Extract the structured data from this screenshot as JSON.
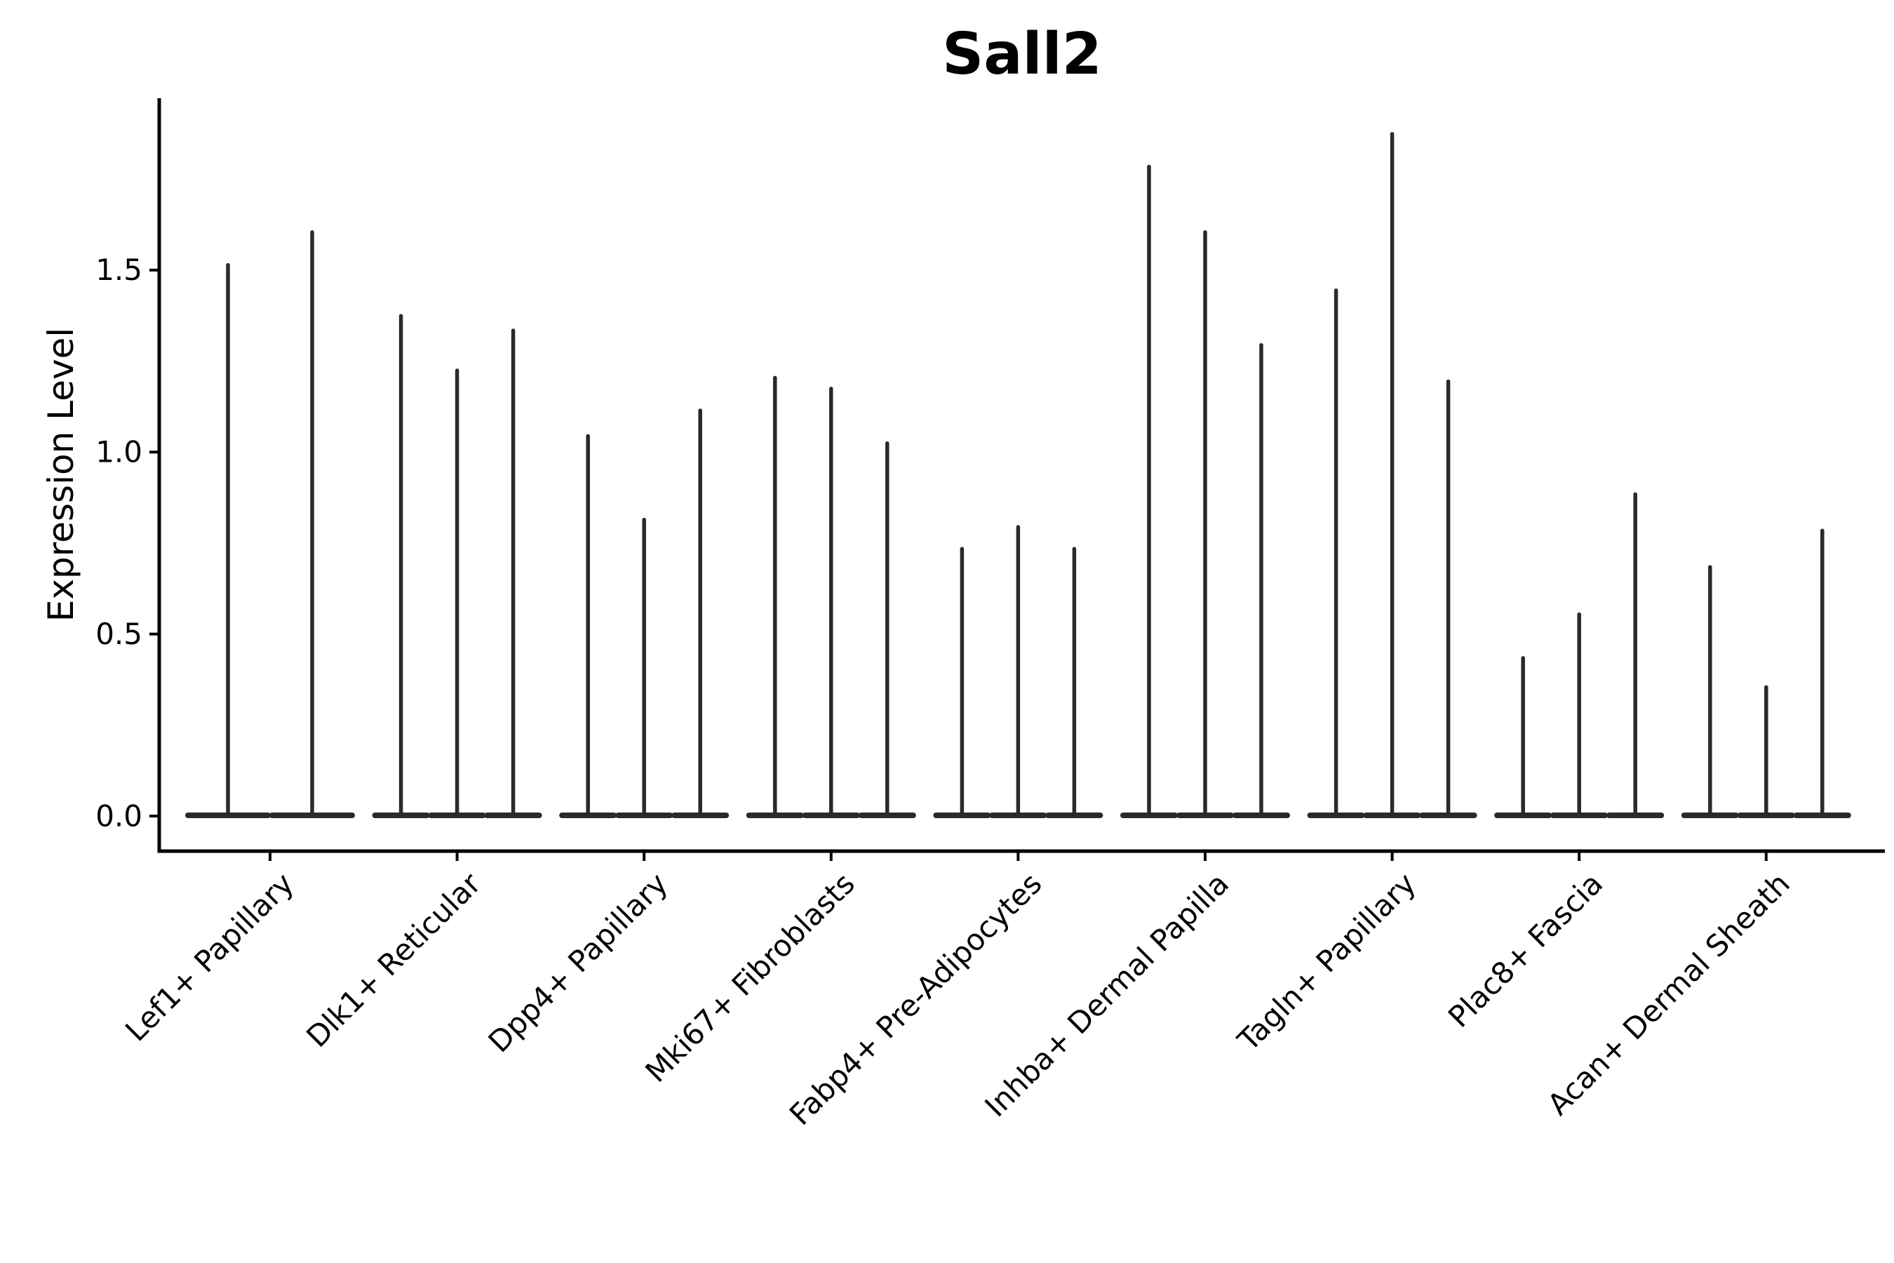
{
  "figure": {
    "title": "Sall2",
    "ylabel": "Expression Level",
    "background_color": "#ffffff",
    "axis_color": "#000000",
    "text_color": "#000000",
    "violin_color": "#2a2a2a"
  },
  "chart_data": {
    "type": "violin",
    "title": "Sall2",
    "xlabel": "",
    "ylabel": "Expression Level",
    "ylim": [
      -0.1,
      1.97
    ],
    "yticks": [
      0.0,
      0.5,
      1.0,
      1.5
    ],
    "ytick_labels": [
      "0.0",
      "0.5",
      "1.0",
      "1.5"
    ],
    "grid": false,
    "legend_position": "none",
    "x_tick_rotation": 45,
    "categories": [
      "Lef1+ Papillary",
      "Dlk1+ Reticular",
      "Dpp4+ Papillary",
      "Mki67+ Fibroblasts",
      "Fabp4+ Pre-Adipocytes",
      "Inhba+ Dermal Papilla",
      "Tagln+ Papillary",
      "Plac8+ Fascia",
      "Acan+ Dermal Sheath"
    ],
    "groups": [
      {
        "label": "Lef1+ Papillary",
        "violin_maxima": [
          1.52,
          1.61
        ]
      },
      {
        "label": "Dlk1+ Reticular",
        "violin_maxima": [
          1.38,
          1.23,
          1.34
        ]
      },
      {
        "label": "Dpp4+ Papillary",
        "violin_maxima": [
          1.05,
          0.82,
          1.12
        ]
      },
      {
        "label": "Mki67+ Fibroblasts",
        "violin_maxima": [
          1.21,
          1.18,
          1.03
        ]
      },
      {
        "label": "Fabp4+ Pre-Adipocytes",
        "violin_maxima": [
          0.74,
          0.8,
          0.74
        ]
      },
      {
        "label": "Inhba+ Dermal Papilla",
        "violin_maxima": [
          1.79,
          1.61,
          1.3
        ]
      },
      {
        "label": "Tagln+ Papillary",
        "violin_maxima": [
          1.45,
          1.88,
          1.2
        ]
      },
      {
        "label": "Plac8+ Fascia",
        "violin_maxima": [
          0.44,
          0.56,
          0.89
        ]
      },
      {
        "label": "Acan+ Dermal Sheath",
        "violin_maxima": [
          0.69,
          0.36,
          0.79
        ]
      }
    ],
    "violin_baseline_value": 0.0,
    "description": "Each violin is a narrow spike rising from expression level 0 to its maximum; wide flat violin bodies sit at 0."
  }
}
